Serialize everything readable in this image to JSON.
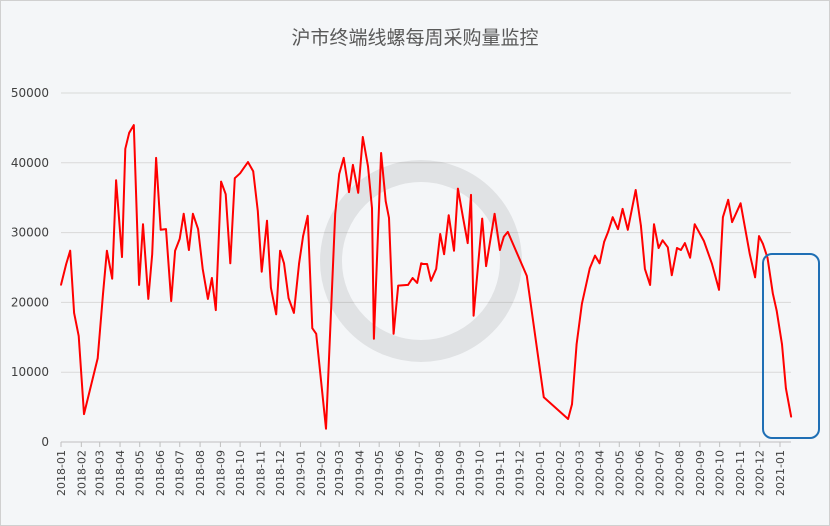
{
  "chart_data": {
    "type": "line",
    "title": "沪市终端线螺每周采购量监控",
    "xlabel": "",
    "ylabel": "",
    "ylim": [
      0,
      50000
    ],
    "yticks": [
      "0",
      "10000",
      "20000",
      "30000",
      "40000",
      "50000"
    ],
    "xticks": [
      "2018-01",
      "2018-02",
      "2018-03",
      "2018-04",
      "2018-05",
      "2018-06",
      "2018-07",
      "2018-08",
      "2018-09",
      "2018-10",
      "2018-11",
      "2018-12",
      "2019-01",
      "2019-02",
      "2019-03",
      "2019-04",
      "2019-05",
      "2019-06",
      "2019-07",
      "2019-08",
      "2019-09",
      "2019-10",
      "2019-11",
      "2019-12",
      "2020-01",
      "2020-02",
      "2020-03",
      "2020-04",
      "2020-05",
      "2020-06",
      "2020-07",
      "2020-08",
      "2020-09",
      "2020-10",
      "2020-11",
      "2020-12",
      "2021-01"
    ],
    "grid": true,
    "line_color": "#ff0000",
    "highlight_box_color": "#1f6fb5",
    "series": [
      {
        "x": [
          "2018-01-01",
          "2018-01-09",
          "2018-01-15",
          "2018-01-21",
          "2018-01-28",
          "2018-02-05",
          "2018-02-26",
          "2018-03-06",
          "2018-03-12",
          "2018-03-20",
          "2018-03-26",
          "2018-04-04",
          "2018-04-09",
          "2018-04-15",
          "2018-04-22",
          "2018-04-30",
          "2018-05-06",
          "2018-05-14",
          "2018-05-20",
          "2018-05-26",
          "2018-06-02",
          "2018-06-10",
          "2018-06-18",
          "2018-06-24",
          "2018-07-01",
          "2018-07-07",
          "2018-07-15",
          "2018-07-21",
          "2018-07-29",
          "2018-08-05",
          "2018-08-13",
          "2018-08-19",
          "2018-08-25",
          "2018-09-02",
          "2018-09-09",
          "2018-09-16",
          "2018-09-23",
          "2018-10-01",
          "2018-10-07",
          "2018-10-13",
          "2018-10-21",
          "2018-10-28",
          "2018-11-03",
          "2018-11-11",
          "2018-11-17",
          "2018-11-25",
          "2018-12-01",
          "2018-12-07",
          "2018-12-14",
          "2018-12-22",
          "2018-12-30",
          "2019-01-05",
          "2019-01-12",
          "2019-01-19",
          "2019-01-25",
          "2019-02-09",
          "2019-02-23",
          "2019-03-01",
          "2019-03-08",
          "2019-03-16",
          "2019-03-22",
          "2019-03-30",
          "2019-04-06",
          "2019-04-14",
          "2019-04-20",
          "2019-04-23",
          "2019-05-04",
          "2019-05-11",
          "2019-05-16",
          "2019-05-23",
          "2019-05-30",
          "2019-06-14",
          "2019-06-21",
          "2019-06-28",
          "2019-07-04",
          "2019-07-07",
          "2019-07-13",
          "2019-07-19",
          "2019-07-27",
          "2019-08-02",
          "2019-08-08",
          "2019-08-15",
          "2019-08-23",
          "2019-08-29",
          "2019-09-06",
          "2019-09-13",
          "2019-09-18",
          "2019-09-22",
          "2019-10-05",
          "2019-10-11",
          "2019-10-24",
          "2019-11-01",
          "2019-11-07",
          "2019-11-13",
          "2019-12-12",
          "2020-01-07",
          "2020-02-13",
          "2020-02-19",
          "2020-02-26",
          "2020-03-05",
          "2020-03-17",
          "2020-03-25",
          "2020-04-01",
          "2020-04-08",
          "2020-04-14",
          "2020-04-21",
          "2020-04-29",
          "2020-05-06",
          "2020-05-14",
          "2020-05-26",
          "2020-06-03",
          "2020-06-09",
          "2020-06-17",
          "2020-06-23",
          "2020-06-30",
          "2020-07-06",
          "2020-07-14",
          "2020-07-20",
          "2020-07-28",
          "2020-08-03",
          "2020-08-09",
          "2020-08-17",
          "2020-08-24",
          "2020-09-07",
          "2020-09-19",
          "2020-09-30",
          "2020-10-06",
          "2020-10-14",
          "2020-10-20",
          "2020-11-02",
          "2020-11-16",
          "2020-11-24",
          "2020-11-30",
          "2020-12-06",
          "2020-12-13",
          "2020-12-21",
          "2020-12-27",
          "2021-01-04",
          "2021-01-10",
          "2021-01-18"
        ],
        "values": [
          22500,
          25500,
          27400,
          18500,
          15200,
          4000,
          12000,
          21200,
          27400,
          23400,
          37500,
          26500,
          42000,
          44300,
          45400,
          22500,
          31200,
          20500,
          26900,
          40700,
          30400,
          30500,
          20200,
          27400,
          29100,
          32700,
          27500,
          32700,
          30500,
          24800,
          20500,
          23500,
          18900,
          37300,
          35500,
          25600,
          37800,
          38500,
          39300,
          40100,
          38800,
          33100,
          24400,
          31700,
          22100,
          18300,
          27400,
          25600,
          20600,
          18500,
          25600,
          29500,
          32400,
          16300,
          15500,
          1900,
          32700,
          38400,
          40700,
          35800,
          39700,
          35700,
          43700,
          39500,
          33500,
          14800,
          41400,
          34500,
          32100,
          15500,
          22400,
          22500,
          23500,
          22800,
          25600,
          25500,
          25500,
          23100,
          24800,
          29800,
          26900,
          32500,
          27400,
          36300,
          32100,
          28500,
          35400,
          18100,
          32000,
          25200,
          32700,
          27500,
          29400,
          30100,
          23800,
          6400,
          3300,
          5400,
          14000,
          19800,
          24900,
          26700,
          25600,
          28700,
          30100,
          32200,
          30500,
          33400,
          30400,
          36100,
          31000,
          24800,
          22500,
          31200,
          27800,
          28900,
          27900,
          23900,
          27800,
          27500,
          28500,
          26400,
          31200,
          28800,
          25600,
          21800,
          32200,
          34700,
          31500,
          34200,
          26900,
          23600,
          29500,
          28400,
          26400,
          21300,
          18800,
          14000,
          7700,
          3600
        ]
      }
    ]
  }
}
